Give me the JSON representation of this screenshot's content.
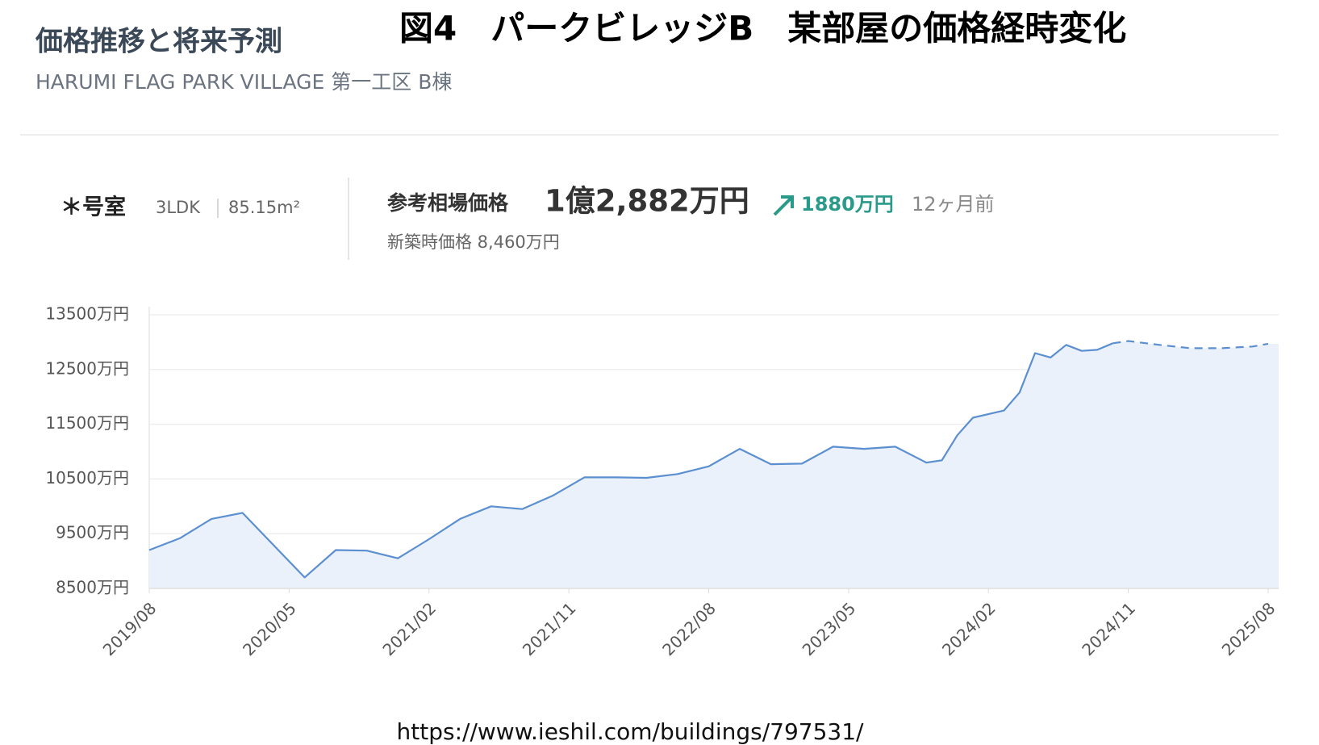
{
  "header": {
    "title": "価格推移と将来予測",
    "subtitle": "HARUMI FLAG PARK VILLAGE 第一工区 B棟"
  },
  "figure_title": "図4　パークビレッジB　某部屋の価格経時変化",
  "info": {
    "room": "＊号室",
    "layout": "3LDK",
    "area": "85.15m²",
    "price_label": "参考相場価格",
    "price": "1億2,882万円",
    "change": "1880万円",
    "change_period": "12ヶ月前",
    "new_price": "新築時価格 8,460万円"
  },
  "chart_data": {
    "type": "line",
    "x": [
      "2019/08",
      "2019/10",
      "2019/12",
      "2020/02",
      "2020/06",
      "2020/08",
      "2020/10",
      "2020/12",
      "2021/02",
      "2021/04",
      "2021/06",
      "2021/08",
      "2021/10",
      "2021/12",
      "2022/02",
      "2022/04",
      "2022/06",
      "2022/08",
      "2022/10",
      "2022/12",
      "2023/02",
      "2023/04",
      "2023/06",
      "2023/08",
      "2023/10",
      "2023/11",
      "2023/12",
      "2024/01",
      "2024/03",
      "2024/04",
      "2024/05",
      "2024/06",
      "2024/07",
      "2024/08",
      "2024/09",
      "2024/10",
      "2024/11",
      "2025/01",
      "2025/03",
      "2025/05",
      "2025/07",
      "2025/08"
    ],
    "series": [
      {
        "color": "#5b8fd0",
        "dashed": false,
        "values": [
          9200,
          9420,
          9770,
          9880,
          8700,
          9200,
          9190,
          9050,
          9400,
          9770,
          10000,
          9950,
          10200,
          10530,
          10530,
          10520,
          10590,
          10730,
          11050,
          10770,
          10780,
          11090,
          11050,
          11090,
          10800,
          10840,
          11300,
          11620,
          11750,
          12080,
          12800,
          12720,
          12950,
          12840,
          12860,
          12980,
          null,
          null,
          null,
          null,
          null,
          null
        ]
      },
      {
        "color": "#5b8fd0",
        "dashed": true,
        "values": [
          null,
          null,
          null,
          null,
          null,
          null,
          null,
          null,
          null,
          null,
          null,
          null,
          null,
          null,
          null,
          null,
          null,
          null,
          null,
          null,
          null,
          null,
          null,
          null,
          null,
          null,
          null,
          null,
          null,
          null,
          null,
          null,
          null,
          null,
          null,
          12980,
          13020,
          12950,
          12890,
          12890,
          12920,
          12970
        ]
      }
    ],
    "area_color": "#eaf1fa",
    "xlim": [
      "2019/08",
      "2025/08"
    ],
    "xticks": [
      "2019/08",
      "2020/05",
      "2021/02",
      "2021/11",
      "2022/08",
      "2023/05",
      "2024/02",
      "2024/11",
      "2025/08"
    ],
    "ylim": [
      8500,
      13500
    ],
    "yticks": [
      {
        "value": 8500,
        "label": "8500万円"
      },
      {
        "value": 9500,
        "label": "9500万円"
      },
      {
        "value": 10500,
        "label": "10500万円"
      },
      {
        "value": 11500,
        "label": "11500万円"
      },
      {
        "value": 12500,
        "label": "12500万円"
      },
      {
        "value": 13500,
        "label": "13500万円"
      }
    ],
    "grid": true
  },
  "source": "https://www.ieshil.com/buildings/797531/"
}
